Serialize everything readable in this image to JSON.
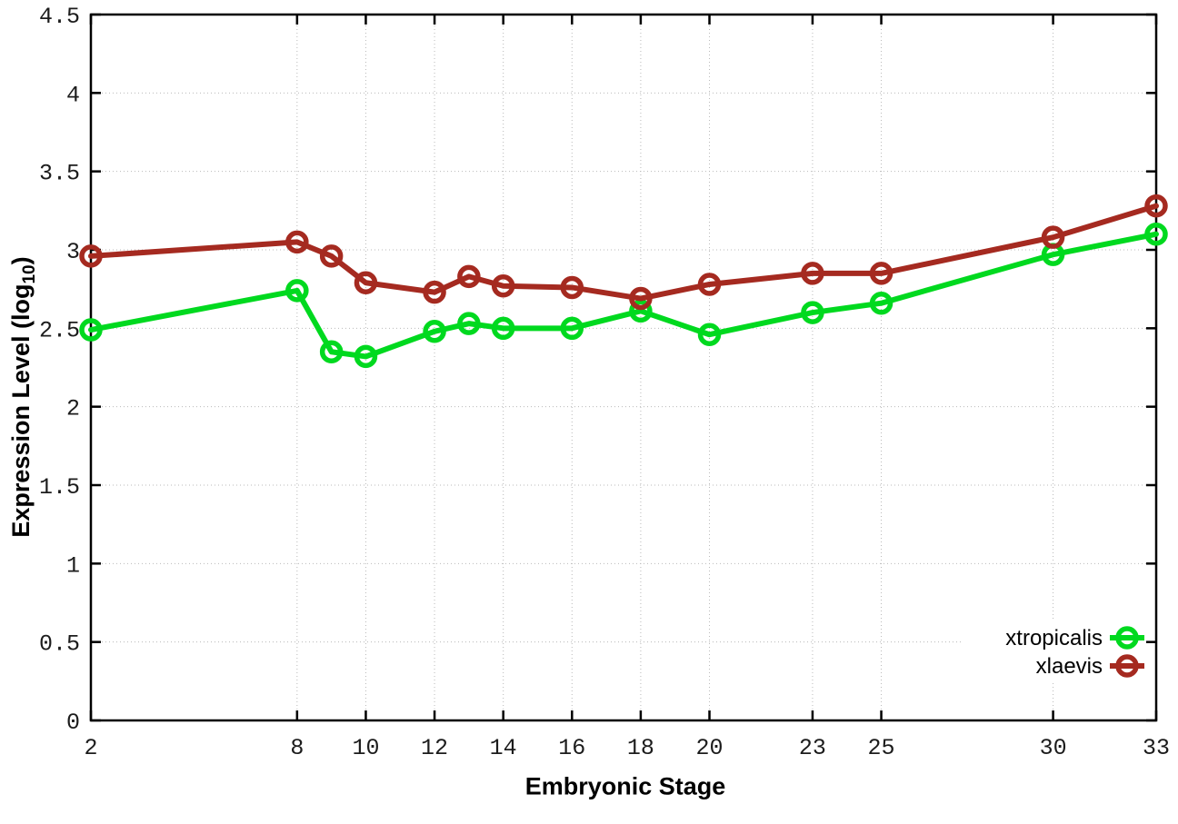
{
  "chart_data": {
    "type": "line",
    "title": "",
    "xlabel": "Embryonic Stage",
    "ylabel": "Expression Level (log10)",
    "ylabel_parts": {
      "prefix": "Expression Level (log",
      "subscript": "10",
      "suffix": ")"
    },
    "xlim": [
      2,
      33
    ],
    "ylim": [
      0,
      4.5
    ],
    "x_ticks": [
      2,
      8,
      10,
      12,
      14,
      16,
      18,
      20,
      23,
      25,
      30,
      33
    ],
    "y_ticks": [
      0,
      0.5,
      1,
      1.5,
      2,
      2.5,
      3,
      3.5,
      4,
      4.5
    ],
    "grid": true,
    "grid_style": "dotted",
    "legend_position": "bottom-right",
    "marker": "open-circle",
    "x": [
      2,
      8,
      9,
      10,
      12,
      13,
      14,
      16,
      18,
      20,
      23,
      25,
      30,
      33
    ],
    "series": [
      {
        "name": "xtropicalis",
        "color": "#00d91f",
        "values": [
          2.49,
          2.74,
          2.35,
          2.32,
          2.48,
          2.53,
          2.5,
          2.5,
          2.61,
          2.46,
          2.6,
          2.66,
          2.97,
          3.1
        ]
      },
      {
        "name": "xlaevis",
        "color": "#a52a20",
        "values": [
          2.96,
          3.05,
          2.96,
          2.79,
          2.73,
          2.83,
          2.77,
          2.76,
          2.69,
          2.78,
          2.85,
          2.85,
          3.08,
          3.28
        ]
      }
    ]
  }
}
